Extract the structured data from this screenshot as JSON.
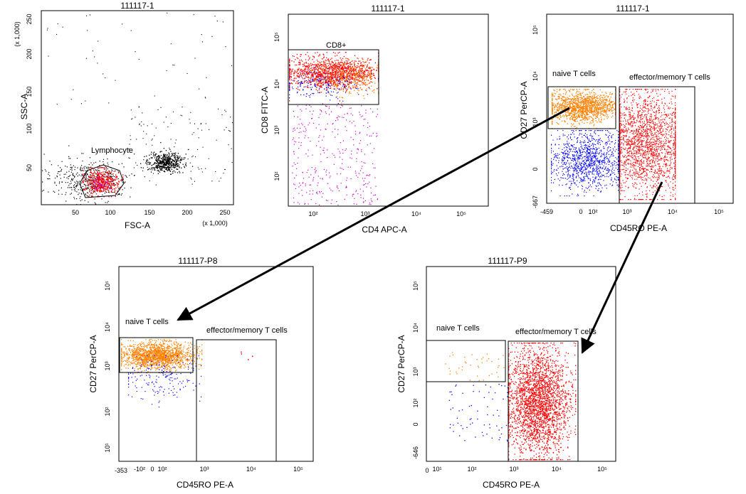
{
  "chart_data": [
    {
      "id": "p1",
      "type": "scatter",
      "title": "111117-1",
      "xlabel": "FSC-A",
      "ylabel": "SSC-A",
      "x_scale_note": "(x 1,000)",
      "y_scale_note": "(x 1,000)",
      "xlim": [
        0,
        262
      ],
      "ylim": [
        0,
        262
      ],
      "x_ticks": [
        "50",
        "100",
        "150",
        "200",
        "250"
      ],
      "y_ticks": [
        "50",
        "100",
        "150",
        "200",
        "250"
      ],
      "gates": [
        {
          "name": "Lymphocyte",
          "shape": "polygon"
        }
      ],
      "populations": [
        {
          "name": "events",
          "color": "#000000"
        },
        {
          "name": "CD8+ (gated)",
          "color": "#ff0000"
        },
        {
          "name": "CD4+",
          "color": "#cc00cc"
        }
      ]
    },
    {
      "id": "p2",
      "type": "scatter",
      "title": "111117-1",
      "xlabel": "CD4 APC-A",
      "ylabel": "CD8 FITC-A",
      "x_scale": "log",
      "y_scale": "log",
      "x_ticks": [
        "10²",
        "10³",
        "10⁴",
        "10⁵"
      ],
      "y_ticks": [
        "10²",
        "10³",
        "10⁴",
        "10⁵"
      ],
      "gates": [
        {
          "name": "CD8+",
          "shape": "rectangle"
        }
      ],
      "populations": [
        {
          "name": "CD8+",
          "color": "#ff0000"
        },
        {
          "name": "naive",
          "color": "#ff8000"
        },
        {
          "name": "other",
          "color": "#0000ff"
        },
        {
          "name": "CD4+",
          "color": "#cc00cc"
        }
      ]
    },
    {
      "id": "p3",
      "type": "scatter",
      "title": "111117-1",
      "xlabel": "CD45RO PE-A",
      "ylabel": "CD27 PerCP-A",
      "x_scale": "biexponential",
      "y_scale": "biexponential",
      "x_ticks": [
        "-459",
        "0",
        "10²",
        "10³",
        "10⁴",
        "10⁵"
      ],
      "y_ticks": [
        "-667",
        "0",
        "10³",
        "10⁴",
        "10⁵"
      ],
      "gates": [
        {
          "name": "naive T cells",
          "shape": "rectangle"
        },
        {
          "name": "effector/memory T cells",
          "shape": "rectangle"
        }
      ],
      "populations": [
        {
          "name": "naive T cells",
          "color": "#ff8000"
        },
        {
          "name": "effector/memory T cells",
          "color": "#ff0000"
        },
        {
          "name": "CD27- CD45RO-",
          "color": "#0000ff"
        }
      ]
    },
    {
      "id": "p4",
      "type": "scatter",
      "title": "111117-P8",
      "xlabel": "CD45RO PE-A",
      "ylabel": "CD27 PerCP-A",
      "x_scale": "biexponential",
      "y_scale": "log",
      "x_ticks": [
        "-353",
        "-10²",
        "0",
        "10²",
        "10³",
        "10⁴",
        "10⁵"
      ],
      "y_ticks": [
        "10¹",
        "10²",
        "10³",
        "10⁴",
        "10⁵"
      ],
      "gates": [
        {
          "name": "naive T cells",
          "shape": "rectangle"
        },
        {
          "name": "effector/memory T cells",
          "shape": "rectangle"
        }
      ],
      "populations": [
        {
          "name": "naive T cells",
          "color": "#ff8000"
        },
        {
          "name": "other",
          "color": "#0000ff"
        },
        {
          "name": "effector/memory T cells",
          "color": "#ff0000"
        }
      ]
    },
    {
      "id": "p5",
      "type": "scatter",
      "title": "111117-P9",
      "xlabel": "CD45RO PE-A",
      "ylabel": "CD27 PerCP-A",
      "x_scale": "biexponential",
      "y_scale": "biexponential",
      "x_ticks": [
        "0",
        "10¹",
        "10²",
        "10³",
        "10⁴",
        "10⁵"
      ],
      "y_ticks": [
        "-646",
        "0",
        "10²",
        "10³",
        "10⁴",
        "10⁵"
      ],
      "gates": [
        {
          "name": "naive T cells",
          "shape": "rectangle"
        },
        {
          "name": "effector/memory T cells",
          "shape": "rectangle"
        }
      ],
      "populations": [
        {
          "name": "naive T cells",
          "color": "#ff8000"
        },
        {
          "name": "effector/memory T cells",
          "color": "#ff0000"
        },
        {
          "name": "other",
          "color": "#0000ff"
        }
      ]
    }
  ]
}
